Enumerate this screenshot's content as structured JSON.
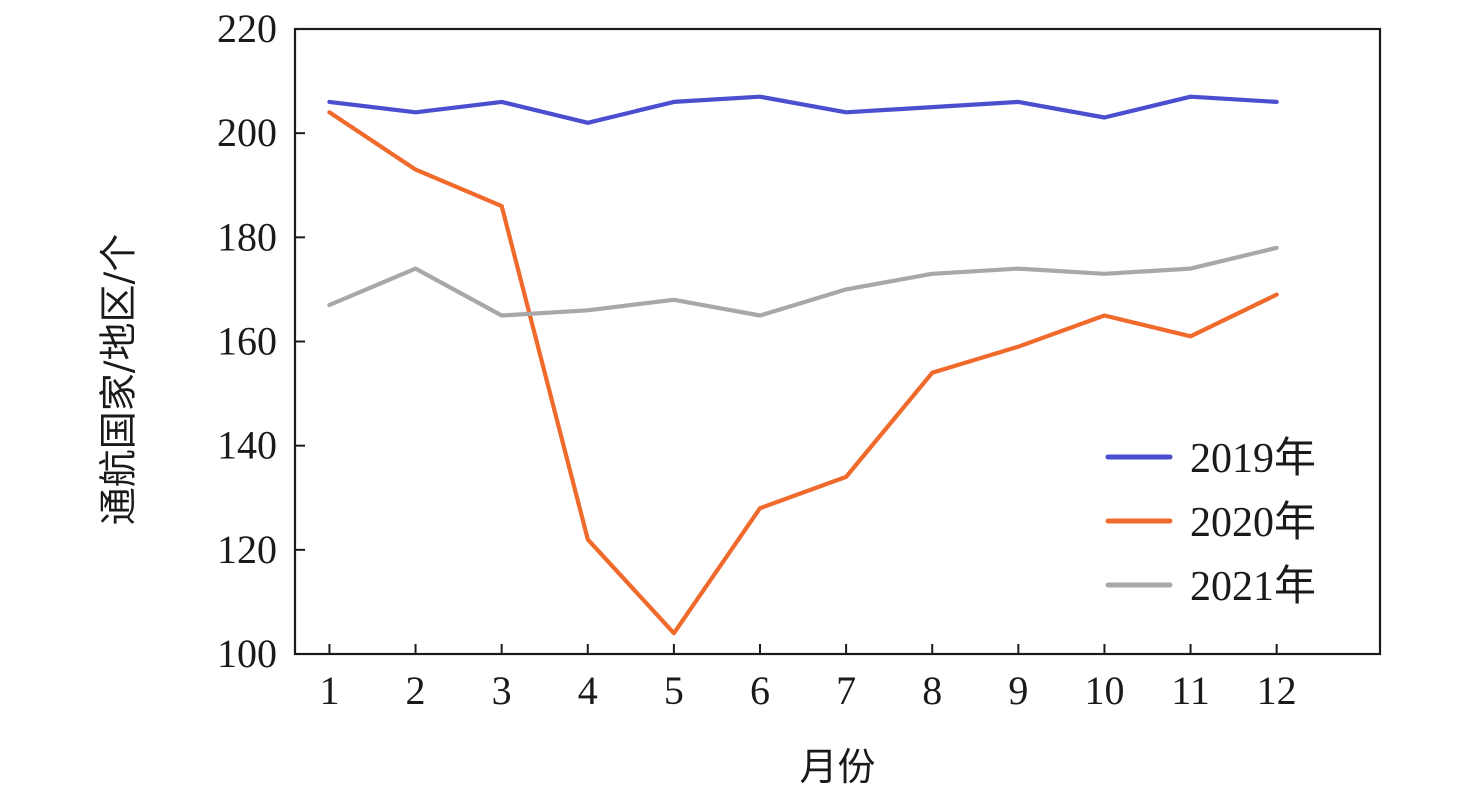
{
  "chart_data": {
    "type": "line",
    "title": "",
    "xlabel": "月份",
    "ylabel": "通航国家/地区/个",
    "x": [
      1,
      2,
      3,
      4,
      5,
      6,
      7,
      8,
      9,
      10,
      11,
      12
    ],
    "ylim": [
      100,
      220
    ],
    "yticks": [
      100,
      120,
      140,
      160,
      180,
      200,
      220
    ],
    "xlim": [
      0.6,
      13.2
    ],
    "grid": false,
    "legend_position": "lower-right",
    "series": [
      {
        "name": "2019年",
        "color": "#4a4fd0",
        "values": [
          206,
          204,
          206,
          202,
          206,
          207,
          204,
          205,
          206,
          203,
          207,
          206
        ]
      },
      {
        "name": "2020年",
        "color": "#f06a2c",
        "values": [
          204,
          193,
          186,
          122,
          104,
          128,
          134,
          154,
          159,
          165,
          161,
          169
        ]
      },
      {
        "name": "2021年",
        "color": "#a8a8a8",
        "values": [
          167,
          174,
          165,
          166,
          168,
          165,
          170,
          173,
          174,
          173,
          174,
          178
        ]
      }
    ]
  }
}
